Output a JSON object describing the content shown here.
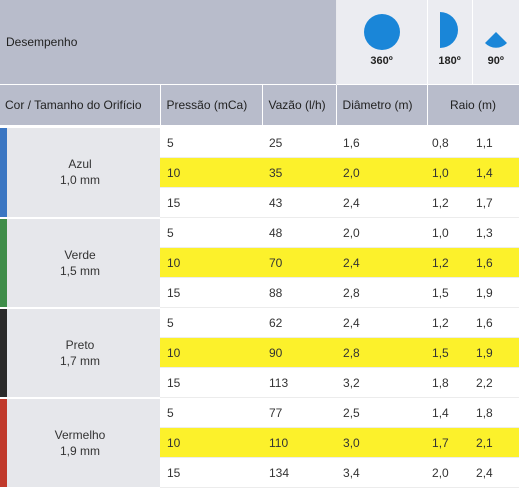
{
  "header": {
    "title": "Desempenho",
    "patterns": [
      {
        "label": "360º",
        "icon": "full-circle-icon"
      },
      {
        "label": "180º",
        "icon": "half-circle-icon"
      },
      {
        "label": "90º",
        "icon": "quarter-circle-icon"
      }
    ],
    "icon_color": "#1a86d8"
  },
  "columns": [
    "Cor / Tamanho do Orifício",
    "Pressão (mCa)",
    "Vazão (l/h)",
    "Diâmetro (m)",
    "Raio (m)"
  ],
  "highlight_color": "#fcf12b",
  "groups": [
    {
      "name": "Azul",
      "size": "1,0 mm",
      "color": "#3b76c2",
      "rows": [
        {
          "pressao": "5",
          "vazao": "25",
          "diametro": "1,6",
          "raio_a": "0,8",
          "raio_b": "1,1",
          "highlight": false
        },
        {
          "pressao": "10",
          "vazao": "35",
          "diametro": "2,0",
          "raio_a": "1,0",
          "raio_b": "1,4",
          "highlight": true
        },
        {
          "pressao": "15",
          "vazao": "43",
          "diametro": "2,4",
          "raio_a": "1,2",
          "raio_b": "1,7",
          "highlight": false
        }
      ]
    },
    {
      "name": "Verde",
      "size": "1,5 mm",
      "color": "#3f8d49",
      "rows": [
        {
          "pressao": "5",
          "vazao": "48",
          "diametro": "2,0",
          "raio_a": "1,0",
          "raio_b": "1,3",
          "highlight": false
        },
        {
          "pressao": "10",
          "vazao": "70",
          "diametro": "2,4",
          "raio_a": "1,2",
          "raio_b": "1,6",
          "highlight": true
        },
        {
          "pressao": "15",
          "vazao": "88",
          "diametro": "2,8",
          "raio_a": "1,5",
          "raio_b": "1,9",
          "highlight": false
        }
      ]
    },
    {
      "name": "Preto",
      "size": "1,7 mm",
      "color": "#2a2a2a",
      "rows": [
        {
          "pressao": "5",
          "vazao": "62",
          "diametro": "2,4",
          "raio_a": "1,2",
          "raio_b": "1,6",
          "highlight": false
        },
        {
          "pressao": "10",
          "vazao": "90",
          "diametro": "2,8",
          "raio_a": "1,5",
          "raio_b": "1,9",
          "highlight": true
        },
        {
          "pressao": "15",
          "vazao": "113",
          "diametro": "3,2",
          "raio_a": "1,8",
          "raio_b": "2,2",
          "highlight": false
        }
      ]
    },
    {
      "name": "Vermelho",
      "size": "1,9 mm",
      "color": "#c0392b",
      "rows": [
        {
          "pressao": "5",
          "vazao": "77",
          "diametro": "2,5",
          "raio_a": "1,4",
          "raio_b": "1,8",
          "highlight": false
        },
        {
          "pressao": "10",
          "vazao": "110",
          "diametro": "3,0",
          "raio_a": "1,7",
          "raio_b": "2,1",
          "highlight": true
        },
        {
          "pressao": "15",
          "vazao": "134",
          "diametro": "3,4",
          "raio_a": "2,0",
          "raio_b": "2,4",
          "highlight": false
        }
      ]
    }
  ]
}
